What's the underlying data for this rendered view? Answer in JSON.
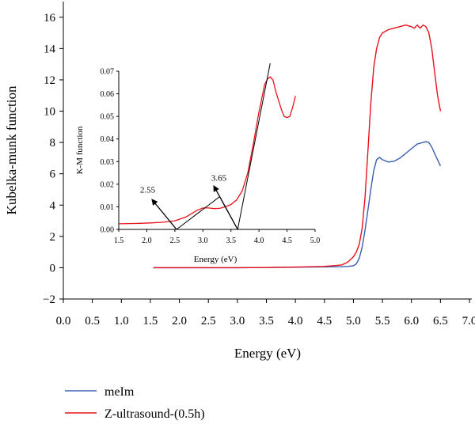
{
  "chart_data": [
    {
      "type": "line",
      "xlabel": "Energy (eV)",
      "ylabel": "Kubelka-munk function",
      "xlim": [
        0.0,
        7.0
      ],
      "ylim": [
        -2,
        17
      ],
      "xticks": [
        "0.0",
        "0.5",
        "1.0",
        "1.5",
        "2.0",
        "2.5",
        "3.0",
        "3.5",
        "4.0",
        "4.5",
        "5.0",
        "5.5",
        "6.0",
        "6.5",
        "7.0"
      ],
      "xtick_values": [
        0,
        0.5,
        1,
        1.5,
        2,
        2.5,
        3,
        3.5,
        4,
        4.5,
        5,
        5.5,
        6,
        6.5,
        7
      ],
      "yticks": [
        "−2",
        "0",
        "2",
        "4",
        "6",
        "8",
        "10",
        "12",
        "14",
        "16"
      ],
      "ytick_values": [
        -2,
        0,
        2,
        4,
        6,
        8,
        10,
        12,
        14,
        16
      ],
      "grid": false,
      "legend_position": "bottom-left",
      "series": [
        {
          "name": "meIm",
          "color": "#3a5fb0",
          "x": [
            1.55,
            2.0,
            2.5,
            3.0,
            3.5,
            4.0,
            4.5,
            4.8,
            4.9,
            5.0,
            5.05,
            5.1,
            5.15,
            5.2,
            5.25,
            5.3,
            5.35,
            5.4,
            5.45,
            5.5,
            5.6,
            5.7,
            5.8,
            5.9,
            6.0,
            6.1,
            6.15,
            6.2,
            6.25,
            6.3,
            6.35,
            6.4,
            6.45,
            6.5
          ],
          "y": [
            0.0,
            0.0,
            0.0,
            0.0,
            0.01,
            0.03,
            0.05,
            0.06,
            0.08,
            0.12,
            0.25,
            0.6,
            1.3,
            2.4,
            3.7,
            5.0,
            6.2,
            6.9,
            7.05,
            6.9,
            6.75,
            6.8,
            7.0,
            7.3,
            7.6,
            7.9,
            7.95,
            8.0,
            8.05,
            8.0,
            7.7,
            7.3,
            6.9,
            6.5
          ]
        },
        {
          "name": "Z-ultrasound-(0.5h)",
          "color": "#e8121c",
          "x": [
            1.55,
            2.0,
            2.5,
            3.0,
            3.5,
            4.0,
            4.5,
            4.8,
            4.9,
            5.0,
            5.05,
            5.1,
            5.15,
            5.2,
            5.25,
            5.3,
            5.35,
            5.4,
            5.45,
            5.5,
            5.6,
            5.7,
            5.8,
            5.9,
            6.0,
            6.05,
            6.1,
            6.15,
            6.2,
            6.25,
            6.3,
            6.35,
            6.4,
            6.45,
            6.5
          ],
          "y": [
            0.0,
            0.0,
            0.0,
            0.0,
            0.01,
            0.04,
            0.08,
            0.18,
            0.35,
            0.7,
            1.0,
            1.5,
            2.5,
            4.5,
            7.5,
            10.5,
            12.8,
            14.0,
            14.7,
            15.0,
            15.2,
            15.3,
            15.4,
            15.5,
            15.4,
            15.3,
            15.5,
            15.3,
            15.5,
            15.4,
            15.0,
            14.0,
            12.5,
            11.0,
            10.0
          ]
        }
      ]
    },
    {
      "type": "line",
      "xlabel": "Energy (eV)",
      "ylabel": "K-M function",
      "xlim": [
        1.5,
        5.0
      ],
      "ylim": [
        0.0,
        0.07
      ],
      "xticks": [
        "1.5",
        "2.0",
        "2.5",
        "3.0",
        "3.5",
        "4.0",
        "4.5",
        "5.0"
      ],
      "xtick_values": [
        1.5,
        2.0,
        2.5,
        3.0,
        3.5,
        4.0,
        4.5,
        5.0
      ],
      "yticks": [
        "0.00",
        "0.01",
        "0.02",
        "0.03",
        "0.04",
        "0.05",
        "0.06",
        "0.07"
      ],
      "ytick_values": [
        0,
        0.01,
        0.02,
        0.03,
        0.04,
        0.05,
        0.06,
        0.07
      ],
      "grid": false,
      "series": [
        {
          "color": "#e8121c",
          "x": [
            1.5,
            1.7,
            1.9,
            2.1,
            2.3,
            2.5,
            2.7,
            2.9,
            3.0,
            3.1,
            3.2,
            3.3,
            3.4,
            3.5,
            3.6,
            3.7,
            3.8,
            3.9,
            4.0,
            4.05,
            4.1,
            4.15,
            4.2,
            4.25,
            4.3,
            4.35,
            4.4,
            4.45,
            4.5,
            4.55,
            4.6,
            4.65
          ],
          "y": [
            0.0025,
            0.0026,
            0.0027,
            0.0029,
            0.0032,
            0.0038,
            0.0055,
            0.0085,
            0.0095,
            0.0095,
            0.0092,
            0.0093,
            0.01,
            0.011,
            0.013,
            0.017,
            0.025,
            0.038,
            0.052,
            0.058,
            0.064,
            0.0665,
            0.0675,
            0.066,
            0.061,
            0.057,
            0.053,
            0.05,
            0.0495,
            0.05,
            0.054,
            0.059
          ]
        }
      ],
      "tangent_lines": [
        {
          "x": [
            2.53,
            3.3
          ],
          "y": [
            0.0,
            0.0145
          ]
        },
        {
          "x": [
            3.3,
            3.62
          ],
          "y": [
            0.0145,
            0.0
          ]
        },
        {
          "x": [
            3.62,
            4.2
          ],
          "y": [
            0.0,
            0.0735
          ]
        }
      ],
      "annotations": [
        {
          "text": "2.55",
          "tail": [
            2.53,
            0.0
          ],
          "head": [
            2.1,
            0.013
          ],
          "label_at": [
            1.88,
            0.0162
          ]
        },
        {
          "text": "3.65",
          "tail": [
            3.62,
            0.0
          ],
          "head": [
            3.2,
            0.019
          ],
          "label_at": [
            3.15,
            0.0216
          ]
        }
      ]
    }
  ],
  "legend": [
    {
      "label": "meIm",
      "color": "#3a5fb0"
    },
    {
      "label": "Z-ultrasound-(0.5h)",
      "color": "#e8121c"
    }
  ]
}
